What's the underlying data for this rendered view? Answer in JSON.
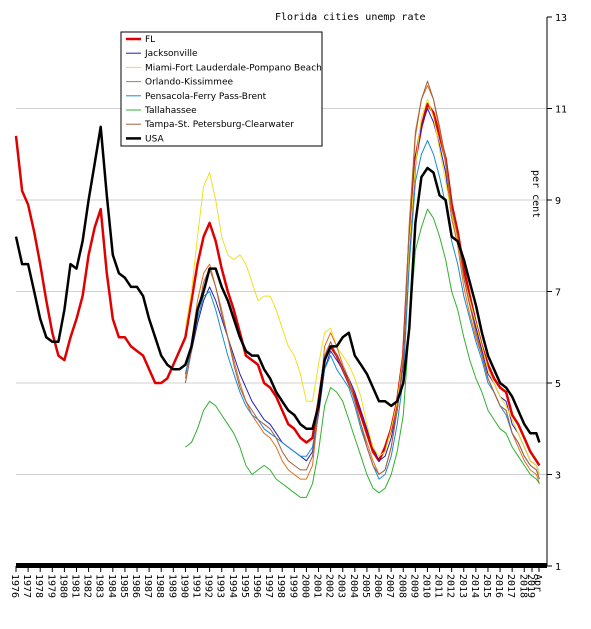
{
  "chart_data": {
    "type": "line",
    "title": "Florida cities unemp rate",
    "ylabel": "per cent",
    "ylim": [
      1,
      13
    ],
    "y_ticks": [
      1,
      3,
      5,
      7,
      9,
      11,
      13
    ],
    "xlim": [
      1976.0,
      2019.3
    ],
    "x_tick_labels": [
      "1976",
      "1977",
      "1978",
      "1979",
      "1980",
      "1981",
      "1982",
      "1983",
      "1984",
      "1985",
      "1986",
      "1987",
      "1988",
      "1989",
      "1990",
      "1991",
      "1992",
      "1993",
      "1994",
      "1995",
      "1996",
      "1997",
      "1998",
      "1999",
      "2000",
      "2001",
      "2002",
      "2003",
      "2004",
      "2005",
      "2006",
      "2007",
      "2008",
      "2009",
      "2010",
      "2011",
      "2012",
      "2013",
      "2014",
      "2015",
      "2016",
      "2017",
      "2018",
      "2019",
      "Apr"
    ],
    "grid": "horizontal",
    "legend_position": "top-left",
    "series": [
      {
        "name": "FL",
        "color": "#e00000",
        "width": 2.5,
        "x": [
          1976,
          1976.5,
          1977,
          1977.5,
          1978,
          1978.5,
          1979,
          1979.5,
          1980,
          1980.5,
          1981,
          1981.5,
          1982,
          1982.5,
          1983,
          1983.5,
          1984,
          1984.5,
          1985,
          1985.5,
          1986,
          1986.5,
          1987,
          1987.5,
          1988,
          1988.5,
          1989,
          1989.5,
          1990,
          1990.5,
          1991,
          1991.5,
          1992,
          1992.5,
          1993,
          1993.5,
          1994,
          1994.5,
          1995,
          1995.5,
          1996,
          1996.5,
          1997,
          1997.5,
          1998,
          1998.5,
          1999,
          1999.5,
          2000,
          2000.5,
          2001,
          2001.5,
          2002,
          2002.5,
          2003,
          2003.5,
          2004,
          2004.5,
          2005,
          2005.5,
          2006,
          2006.5,
          2007,
          2007.5,
          2008,
          2008.5,
          2009,
          2009.5,
          2010,
          2010.5,
          2011,
          2011.5,
          2012,
          2012.5,
          2013,
          2013.5,
          2014,
          2014.5,
          2015,
          2015.5,
          2016,
          2016.5,
          2017,
          2017.5,
          2018,
          2018.5,
          2019,
          2019.25
        ],
        "y": [
          10.4,
          9.2,
          8.9,
          8.3,
          7.6,
          6.8,
          6.1,
          5.6,
          5.5,
          6.0,
          6.4,
          6.9,
          7.8,
          8.4,
          8.8,
          7.4,
          6.4,
          6.0,
          6.0,
          5.8,
          5.7,
          5.6,
          5.3,
          5.0,
          5.0,
          5.1,
          5.4,
          5.7,
          6.0,
          6.8,
          7.6,
          8.2,
          8.5,
          8.1,
          7.5,
          7.0,
          6.6,
          6.1,
          5.6,
          5.5,
          5.4,
          5.0,
          4.9,
          4.7,
          4.4,
          4.1,
          4.0,
          3.8,
          3.7,
          3.8,
          4.6,
          5.5,
          5.8,
          5.6,
          5.3,
          5.0,
          4.7,
          4.3,
          3.9,
          3.5,
          3.3,
          3.6,
          4.0,
          4.6,
          5.6,
          8.1,
          9.9,
          10.6,
          11.1,
          10.9,
          10.4,
          9.9,
          8.9,
          8.3,
          7.5,
          6.9,
          6.3,
          5.8,
          5.4,
          5.1,
          4.9,
          4.8,
          4.3,
          4.1,
          3.8,
          3.5,
          3.3,
          3.2
        ]
      },
      {
        "name": "Jacksonville",
        "color": "#2020c0",
        "width": 1,
        "x": [
          1990,
          1990.5,
          1991,
          1991.5,
          1992,
          1992.5,
          1993,
          1993.5,
          1994,
          1994.5,
          1995,
          1995.5,
          1996,
          1996.5,
          1997,
          1997.5,
          1998,
          1998.5,
          1999,
          1999.5,
          2000,
          2000.5,
          2001,
          2001.5,
          2002,
          2002.5,
          2003,
          2003.5,
          2004,
          2004.5,
          2005,
          2005.5,
          2006,
          2006.5,
          2007,
          2007.5,
          2008,
          2008.5,
          2009,
          2009.5,
          2010,
          2010.5,
          2011,
          2011.5,
          2012,
          2012.5,
          2013,
          2013.5,
          2014,
          2014.5,
          2015,
          2015.5,
          2016,
          2016.5,
          2017,
          2017.5,
          2018,
          2018.5,
          2019,
          2019.25
        ],
        "y": [
          5.2,
          5.7,
          6.3,
          6.8,
          7.1,
          6.8,
          6.4,
          6.0,
          5.6,
          5.2,
          4.9,
          4.6,
          4.4,
          4.2,
          4.1,
          3.9,
          3.7,
          3.6,
          3.5,
          3.4,
          3.3,
          3.5,
          4.3,
          5.3,
          5.7,
          5.5,
          5.3,
          5.1,
          4.8,
          4.4,
          4.0,
          3.6,
          3.3,
          3.4,
          3.8,
          4.4,
          5.4,
          7.8,
          9.9,
          10.6,
          11.0,
          10.7,
          10.2,
          9.6,
          8.6,
          8.1,
          7.3,
          6.7,
          6.2,
          5.7,
          5.2,
          5.0,
          4.7,
          4.6,
          4.1,
          3.9,
          3.6,
          3.3,
          3.2,
          3.0
        ]
      },
      {
        "name": "Miami-Fort Lauderdale-Pompano Beach",
        "color": "#f0e020",
        "width": 1,
        "x": [
          1990,
          1990.5,
          1991,
          1991.5,
          1992,
          1992.5,
          1993,
          1993.5,
          1994,
          1994.5,
          1995,
          1995.5,
          1996,
          1996.5,
          1997,
          1997.5,
          1998,
          1998.5,
          1999,
          1999.5,
          2000,
          2000.5,
          2001,
          2001.5,
          2002,
          2002.5,
          2003,
          2003.5,
          2004,
          2004.5,
          2005,
          2005.5,
          2006,
          2006.5,
          2007,
          2007.5,
          2008,
          2008.5,
          2009,
          2009.5,
          2010,
          2010.5,
          2011,
          2011.5,
          2012,
          2012.5,
          2013,
          2013.5,
          2014,
          2014.5,
          2015,
          2015.5,
          2016,
          2016.5,
          2017,
          2017.5,
          2018,
          2018.5,
          2019,
          2019.25
        ],
        "y": [
          6.2,
          7.0,
          8.2,
          9.3,
          9.6,
          9.0,
          8.2,
          7.8,
          7.7,
          7.8,
          7.6,
          7.2,
          6.8,
          6.9,
          6.9,
          6.6,
          6.2,
          5.8,
          5.6,
          5.2,
          4.6,
          4.6,
          5.4,
          6.1,
          6.2,
          5.8,
          5.6,
          5.4,
          5.1,
          4.7,
          4.1,
          3.6,
          3.4,
          3.5,
          4.0,
          4.6,
          5.6,
          8.0,
          9.8,
          10.8,
          11.2,
          10.8,
          10.1,
          9.4,
          8.7,
          8.1,
          7.3,
          6.8,
          6.3,
          5.8,
          5.3,
          5.0,
          4.7,
          4.5,
          4.2,
          3.9,
          3.6,
          3.3,
          3.2,
          3.0
        ]
      },
      {
        "name": "Orlando-Kissimmee",
        "color": "#e07020",
        "width": 1,
        "x": [
          1990,
          1990.5,
          1991,
          1991.5,
          1992,
          1992.5,
          1993,
          1993.5,
          1994,
          1994.5,
          1995,
          1995.5,
          1996,
          1996.5,
          1997,
          1997.5,
          1998,
          1998.5,
          1999,
          1999.5,
          2000,
          2000.5,
          2001,
          2001.5,
          2002,
          2002.5,
          2003,
          2003.5,
          2004,
          2004.5,
          2005,
          2005.5,
          2006,
          2006.5,
          2007,
          2007.5,
          2008,
          2008.5,
          2009,
          2009.5,
          2010,
          2010.5,
          2011,
          2011.5,
          2012,
          2012.5,
          2013,
          2013.5,
          2014,
          2014.5,
          2015,
          2015.5,
          2016,
          2016.5,
          2017,
          2017.5,
          2018,
          2018.5,
          2019,
          2019.25
        ],
        "y": [
          5.1,
          5.9,
          6.8,
          7.4,
          7.6,
          7.1,
          6.6,
          6.0,
          5.5,
          5.0,
          4.6,
          4.3,
          4.1,
          3.9,
          3.8,
          3.6,
          3.3,
          3.1,
          3.0,
          2.9,
          2.9,
          3.2,
          4.4,
          5.8,
          6.1,
          5.8,
          5.4,
          5.1,
          4.6,
          4.1,
          3.7,
          3.3,
          3.0,
          3.1,
          3.6,
          4.4,
          5.6,
          8.5,
          10.5,
          11.2,
          11.5,
          11.2,
          10.5,
          9.8,
          8.6,
          8.0,
          7.1,
          6.5,
          6.0,
          5.6,
          5.1,
          4.8,
          4.5,
          4.4,
          3.9,
          3.6,
          3.3,
          3.1,
          3.0,
          2.8
        ]
      },
      {
        "name": "Pensacola-Ferry Pass-Brent",
        "color": "#1a8ad4",
        "width": 1,
        "x": [
          1990,
          1990.5,
          1991,
          1991.5,
          1992,
          1992.5,
          1993,
          1993.5,
          1994,
          1994.5,
          1995,
          1995.5,
          1996,
          1996.5,
          1997,
          1997.5,
          1998,
          1998.5,
          1999,
          1999.5,
          2000,
          2000.5,
          2001,
          2001.5,
          2002,
          2002.5,
          2003,
          2003.5,
          2004,
          2004.5,
          2005,
          2005.5,
          2006,
          2006.5,
          2007,
          2007.5,
          2008,
          2008.5,
          2009,
          2009.5,
          2010,
          2010.5,
          2011,
          2011.5,
          2012,
          2012.5,
          2013,
          2013.5,
          2014,
          2014.5,
          2015,
          2015.5,
          2016,
          2016.5,
          2017,
          2017.5,
          2018,
          2018.5,
          2019,
          2019.25
        ],
        "y": [
          5.2,
          5.8,
          6.4,
          6.9,
          7.0,
          6.6,
          6.1,
          5.6,
          5.2,
          4.8,
          4.5,
          4.3,
          4.2,
          4.0,
          3.9,
          3.8,
          3.7,
          3.6,
          3.5,
          3.4,
          3.4,
          3.6,
          4.4,
          5.3,
          5.6,
          5.3,
          5.1,
          4.9,
          4.5,
          4.0,
          3.6,
          3.2,
          2.9,
          3.0,
          3.4,
          4.1,
          5.1,
          7.6,
          9.4,
          10.0,
          10.3,
          10.0,
          9.5,
          8.9,
          8.1,
          7.6,
          6.9,
          6.4,
          5.9,
          5.5,
          5.0,
          4.8,
          4.5,
          4.3,
          3.9,
          3.7,
          3.4,
          3.2,
          3.1,
          2.9
        ]
      },
      {
        "name": "Tallahassee",
        "color": "#30b030",
        "width": 1,
        "x": [
          1990,
          1990.5,
          1991,
          1991.5,
          1992,
          1992.5,
          1993,
          1993.5,
          1994,
          1994.5,
          1995,
          1995.5,
          1996,
          1996.5,
          1997,
          1997.5,
          1998,
          1998.5,
          1999,
          1999.5,
          2000,
          2000.5,
          2001,
          2001.5,
          2002,
          2002.5,
          2003,
          2003.5,
          2004,
          2004.5,
          2005,
          2005.5,
          2006,
          2006.5,
          2007,
          2007.5,
          2008,
          2008.5,
          2009,
          2009.5,
          2010,
          2010.5,
          2011,
          2011.5,
          2012,
          2012.5,
          2013,
          2013.5,
          2014,
          2014.5,
          2015,
          2015.5,
          2016,
          2016.5,
          2017,
          2017.5,
          2018,
          2018.5,
          2019,
          2019.25
        ],
        "y": [
          3.6,
          3.7,
          4.0,
          4.4,
          4.6,
          4.5,
          4.3,
          4.1,
          3.9,
          3.6,
          3.2,
          3.0,
          3.1,
          3.2,
          3.1,
          2.9,
          2.8,
          2.7,
          2.6,
          2.5,
          2.5,
          2.8,
          3.5,
          4.5,
          4.9,
          4.8,
          4.6,
          4.2,
          3.8,
          3.4,
          3.0,
          2.7,
          2.6,
          2.7,
          3.0,
          3.5,
          4.3,
          6.2,
          7.9,
          8.4,
          8.8,
          8.6,
          8.2,
          7.7,
          7.0,
          6.6,
          6.0,
          5.5,
          5.1,
          4.8,
          4.4,
          4.2,
          4.0,
          3.9,
          3.6,
          3.4,
          3.2,
          3.0,
          2.9,
          2.8
        ]
      },
      {
        "name": "Tampa-St. Petersburg-Clearwater",
        "color": "#a06040",
        "width": 1,
        "x": [
          1990,
          1990.5,
          1991,
          1991.5,
          1992,
          1992.5,
          1993,
          1993.5,
          1994,
          1994.5,
          1995,
          1995.5,
          1996,
          1996.5,
          1997,
          1997.5,
          1998,
          1998.5,
          1999,
          1999.5,
          2000,
          2000.5,
          2001,
          2001.5,
          2002,
          2002.5,
          2003,
          2003.5,
          2004,
          2004.5,
          2005,
          2005.5,
          2006,
          2006.5,
          2007,
          2007.5,
          2008,
          2008.5,
          2009,
          2009.5,
          2010,
          2010.5,
          2011,
          2011.5,
          2012,
          2012.5,
          2013,
          2013.5,
          2014,
          2014.5,
          2015,
          2015.5,
          2016,
          2016.5,
          2017,
          2017.5,
          2018,
          2018.5,
          2019,
          2019.25
        ],
        "y": [
          5.0,
          5.7,
          6.5,
          7.2,
          7.5,
          7.1,
          6.5,
          6.0,
          5.4,
          4.9,
          4.6,
          4.4,
          4.2,
          4.1,
          4.0,
          3.8,
          3.5,
          3.3,
          3.2,
          3.1,
          3.1,
          3.4,
          4.4,
          5.6,
          5.9,
          5.6,
          5.3,
          5.0,
          4.6,
          4.1,
          3.6,
          3.2,
          3.0,
          3.1,
          3.6,
          4.4,
          5.5,
          8.4,
          10.4,
          11.2,
          11.6,
          11.2,
          10.6,
          9.9,
          8.8,
          8.2,
          7.3,
          6.7,
          6.1,
          5.6,
          5.1,
          4.8,
          4.5,
          4.4,
          3.9,
          3.7,
          3.4,
          3.2,
          3.1,
          2.9
        ]
      },
      {
        "name": "USA",
        "color": "#000000",
        "width": 2.5,
        "x": [
          1976,
          1976.5,
          1977,
          1977.5,
          1978,
          1978.5,
          1979,
          1979.5,
          1980,
          1980.5,
          1981,
          1981.5,
          1982,
          1982.5,
          1983,
          1983.5,
          1984,
          1984.5,
          1985,
          1985.5,
          1986,
          1986.5,
          1987,
          1987.5,
          1988,
          1988.5,
          1989,
          1989.5,
          1990,
          1990.5,
          1991,
          1991.5,
          1992,
          1992.5,
          1993,
          1993.5,
          1994,
          1994.5,
          1995,
          1995.5,
          1996,
          1996.5,
          1997,
          1997.5,
          1998,
          1998.5,
          1999,
          1999.5,
          2000,
          2000.5,
          2001,
          2001.5,
          2002,
          2002.5,
          2003,
          2003.5,
          2004,
          2004.5,
          2005,
          2005.5,
          2006,
          2006.5,
          2007,
          2007.5,
          2008,
          2008.5,
          2009,
          2009.5,
          2010,
          2010.5,
          2011,
          2011.5,
          2012,
          2012.5,
          2013,
          2013.5,
          2014,
          2014.5,
          2015,
          2015.5,
          2016,
          2016.5,
          2017,
          2017.5,
          2018,
          2018.5,
          2019,
          2019.25
        ],
        "y": [
          8.2,
          7.6,
          7.6,
          7.0,
          6.4,
          6.0,
          5.9,
          5.9,
          6.6,
          7.6,
          7.5,
          8.1,
          9.0,
          9.8,
          10.6,
          9.1,
          7.8,
          7.4,
          7.3,
          7.1,
          7.1,
          6.9,
          6.4,
          6.0,
          5.6,
          5.4,
          5.3,
          5.3,
          5.4,
          5.8,
          6.6,
          7.0,
          7.5,
          7.5,
          7.1,
          6.8,
          6.4,
          6.0,
          5.7,
          5.6,
          5.6,
          5.3,
          5.1,
          4.8,
          4.6,
          4.4,
          4.3,
          4.1,
          4.0,
          4.0,
          4.5,
          5.5,
          5.8,
          5.8,
          6.0,
          6.1,
          5.6,
          5.4,
          5.2,
          4.9,
          4.6,
          4.6,
          4.5,
          4.6,
          5.0,
          6.2,
          8.5,
          9.5,
          9.7,
          9.6,
          9.1,
          9.0,
          8.2,
          8.1,
          7.7,
          7.2,
          6.7,
          6.1,
          5.6,
          5.3,
          5.0,
          4.9,
          4.7,
          4.4,
          4.1,
          3.9,
          3.9,
          3.7
        ]
      }
    ]
  }
}
